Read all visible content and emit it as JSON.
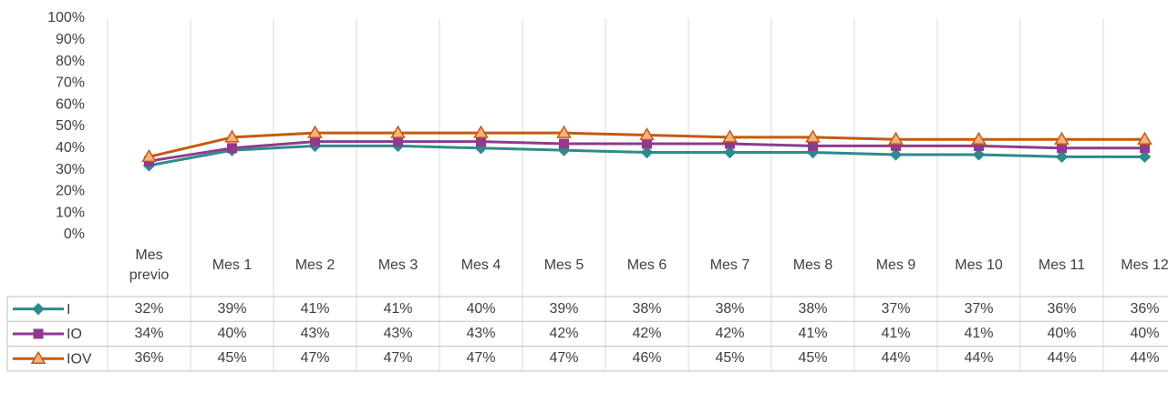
{
  "chart_data": {
    "type": "line",
    "categories": [
      "Mes previo",
      "Mes 1",
      "Mes 2",
      "Mes 3",
      "Mes 4",
      "Mes 5",
      "Mes 6",
      "Mes 7",
      "Mes 8",
      "Mes 9",
      "Mes 10",
      "Mes 11",
      "Mes 12"
    ],
    "series": [
      {
        "name": "I",
        "color": "#2e8b8b",
        "marker": "diamond",
        "values": [
          32,
          39,
          41,
          41,
          40,
          39,
          38,
          38,
          38,
          37,
          37,
          36,
          36
        ],
        "value_labels": [
          "32%",
          "39%",
          "41%",
          "41%",
          "40%",
          "39%",
          "38%",
          "38%",
          "38%",
          "37%",
          "37%",
          "36%",
          "36%"
        ]
      },
      {
        "name": "IO",
        "color": "#8e3b8e",
        "marker": "square",
        "values": [
          34,
          40,
          43,
          43,
          43,
          42,
          42,
          42,
          41,
          41,
          41,
          40,
          40
        ],
        "value_labels": [
          "34%",
          "40%",
          "43%",
          "43%",
          "43%",
          "42%",
          "42%",
          "42%",
          "41%",
          "41%",
          "41%",
          "40%",
          "40%"
        ]
      },
      {
        "name": "IOV",
        "color": "#c55a11",
        "marker": "triangle",
        "values": [
          36,
          45,
          47,
          47,
          47,
          47,
          46,
          45,
          45,
          44,
          44,
          44,
          44
        ],
        "value_labels": [
          "36%",
          "45%",
          "47%",
          "47%",
          "47%",
          "47%",
          "46%",
          "45%",
          "45%",
          "44%",
          "44%",
          "44%",
          "44%"
        ]
      }
    ],
    "ylim": [
      0,
      100
    ],
    "yticks": [
      {
        "value": 0,
        "label": "0%"
      },
      {
        "value": 10,
        "label": "10%"
      },
      {
        "value": 20,
        "label": "20%"
      },
      {
        "value": 30,
        "label": "30%"
      },
      {
        "value": 40,
        "label": "40%"
      },
      {
        "value": 50,
        "label": "50%"
      },
      {
        "value": 60,
        "label": "60%"
      },
      {
        "value": 70,
        "label": "70%"
      },
      {
        "value": 80,
        "label": "80%"
      },
      {
        "value": 90,
        "label": "90%"
      },
      {
        "value": 100,
        "label": "100%"
      }
    ],
    "grid": "vertical"
  }
}
